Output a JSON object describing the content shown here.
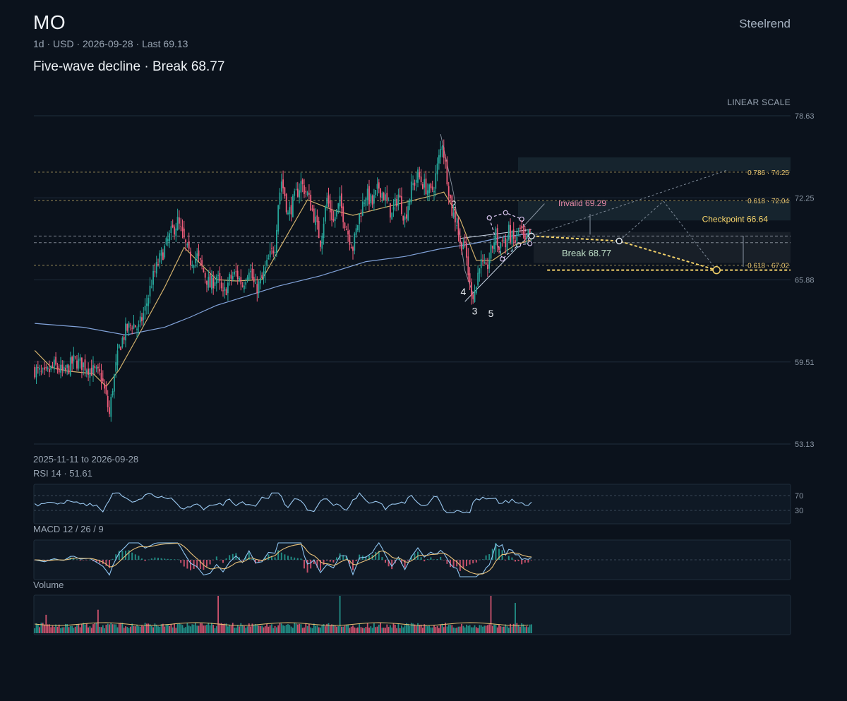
{
  "header": {
    "symbol": "MO",
    "meta": "1d · USD · 2026-09-28 · Last 69.13",
    "headline": "Five-wave decline · Break 68.77",
    "brand": "Steelrend",
    "scale_label": "LINEAR SCALE",
    "date_range": "2025-11-11 to 2026-09-28"
  },
  "colors": {
    "background": "#0b121c",
    "up": "#26a69a",
    "down": "#ef5d7a",
    "ma_fast": "#e8c274",
    "ma_slow": "#8fb4f0",
    "rsi": "#9ac8f0",
    "macd": "#8fc6f2",
    "signal": "#e9c27a",
    "projection": "#f5d36a",
    "invalid": "#e88aa8",
    "break": "#bfe0c8"
  },
  "chart_data": {
    "type": "candlestick",
    "interval": "1d",
    "currency": "USD",
    "start_date": "2025-11-11",
    "end_date": "2026-09-28",
    "last": 69.13,
    "ylim": [
      53.13,
      78.63
    ],
    "y_ticks": [
      "78.63",
      "72.25",
      "65.88",
      "59.51",
      "53.13"
    ],
    "scale": "linear",
    "price_anchors": [
      [
        0,
        58.9
      ],
      [
        6,
        58.4
      ],
      [
        12,
        59.2
      ],
      [
        18,
        58.6
      ],
      [
        24,
        59.6
      ],
      [
        30,
        59.3
      ],
      [
        36,
        58.8
      ],
      [
        41,
        58.4
      ],
      [
        44,
        56.7
      ],
      [
        46,
        55.4
      ],
      [
        48,
        57.6
      ],
      [
        52,
        60.6
      ],
      [
        56,
        61.9
      ],
      [
        60,
        62.5
      ],
      [
        64,
        62.1
      ],
      [
        68,
        63.6
      ],
      [
        72,
        65.7
      ],
      [
        76,
        67.2
      ],
      [
        80,
        68.3
      ],
      [
        84,
        69.5
      ],
      [
        88,
        70.4
      ],
      [
        92,
        68.9
      ],
      [
        96,
        67.4
      ],
      [
        100,
        67.7
      ],
      [
        104,
        66.5
      ],
      [
        108,
        65.4
      ],
      [
        112,
        66.2
      ],
      [
        116,
        64.6
      ],
      [
        120,
        65.9
      ],
      [
        124,
        66.4
      ],
      [
        128,
        65.5
      ],
      [
        132,
        66.9
      ],
      [
        136,
        65.1
      ],
      [
        140,
        65.9
      ],
      [
        144,
        67.4
      ],
      [
        148,
        68.6
      ],
      [
        150,
        71.9
      ],
      [
        152,
        73.6
      ],
      [
        154,
        72.5
      ],
      [
        156,
        70.9
      ],
      [
        160,
        72.2
      ],
      [
        164,
        73.4
      ],
      [
        168,
        72.5
      ],
      [
        172,
        70.9
      ],
      [
        176,
        68.9
      ],
      [
        180,
        72.2
      ],
      [
        184,
        70.4
      ],
      [
        188,
        71.9
      ],
      [
        192,
        69.9
      ],
      [
        196,
        68.4
      ],
      [
        200,
        70.9
      ],
      [
        204,
        72.6
      ],
      [
        208,
        71.8
      ],
      [
        212,
        73.1
      ],
      [
        216,
        72.2
      ],
      [
        220,
        70.9
      ],
      [
        224,
        72.5
      ],
      [
        228,
        70.6
      ],
      [
        232,
        73.0
      ],
      [
        236,
        74.0
      ],
      [
        240,
        73.2
      ],
      [
        244,
        72.6
      ],
      [
        246,
        73.3
      ],
      [
        249,
        75.3
      ],
      [
        251,
        76.6
      ],
      [
        254,
        73.9
      ],
      [
        257,
        71.2
      ],
      [
        260,
        70.4
      ],
      [
        262,
        68.6
      ],
      [
        264,
        68.9
      ],
      [
        266,
        67.5
      ],
      [
        268,
        65.4
      ],
      [
        270,
        64.8
      ],
      [
        272,
        65.4
      ],
      [
        274,
        67.3
      ],
      [
        276,
        66.9
      ],
      [
        278,
        66.5
      ],
      [
        280,
        67.6
      ],
      [
        282,
        68.5
      ],
      [
        284,
        69.4
      ],
      [
        286,
        68.2
      ],
      [
        288,
        69.3
      ],
      [
        290,
        68.5
      ],
      [
        292,
        69.6
      ],
      [
        294,
        69.0
      ],
      [
        296,
        68.9
      ],
      [
        298,
        69.8
      ],
      [
        300,
        69.5
      ],
      [
        302,
        68.5
      ],
      [
        304,
        69.4
      ],
      [
        306,
        69.1
      ]
    ],
    "moving_averages": [
      {
        "name": "fast MA",
        "points": [
          [
            0,
            60.4
          ],
          [
            10,
            59.1
          ],
          [
            20,
            58.8
          ],
          [
            36,
            58.6
          ],
          [
            44,
            57.6
          ],
          [
            52,
            58.9
          ],
          [
            64,
            61.6
          ],
          [
            80,
            65.3
          ],
          [
            92,
            68.4
          ],
          [
            100,
            67.4
          ],
          [
            112,
            65.9
          ],
          [
            124,
            65.8
          ],
          [
            140,
            65.9
          ],
          [
            152,
            68.6
          ],
          [
            168,
            72.1
          ],
          [
            184,
            71.3
          ],
          [
            196,
            70.9
          ],
          [
            212,
            71.4
          ],
          [
            228,
            71.9
          ],
          [
            244,
            72.4
          ],
          [
            252,
            72.7
          ],
          [
            262,
            70.6
          ],
          [
            272,
            67.4
          ],
          [
            282,
            67.4
          ],
          [
            296,
            68.6
          ],
          [
            306,
            69.0
          ]
        ]
      },
      {
        "name": "slow MA",
        "points": [
          [
            0,
            62.5
          ],
          [
            30,
            62.2
          ],
          [
            56,
            61.6
          ],
          [
            80,
            62.2
          ],
          [
            96,
            63.0
          ],
          [
            112,
            63.9
          ],
          [
            130,
            64.6
          ],
          [
            150,
            65.4
          ],
          [
            176,
            66.2
          ],
          [
            204,
            67.3
          ],
          [
            228,
            67.7
          ],
          [
            250,
            68.3
          ],
          [
            270,
            68.7
          ],
          [
            288,
            69.2
          ],
          [
            306,
            69.5
          ]
        ]
      }
    ],
    "levels": [
      {
        "label": "0.786 · 74.25",
        "value": 74.25
      },
      {
        "label": "0.618 · 72.04",
        "value": 72.04
      },
      {
        "label": "0.618 · 67.02",
        "value": 67.02
      }
    ],
    "break_level": {
      "label": "Break 68.77",
      "value": 68.77
    },
    "invalid_level": {
      "label": "Invalid 69.29",
      "value": 69.29
    },
    "checkpoint": {
      "label": "Checkpoint 66.64",
      "value": 66.64
    },
    "wave_labels": [
      {
        "label": "2",
        "bar": 258,
        "price": 71.5
      },
      {
        "label": "3",
        "bar": 271,
        "price": 63.2
      },
      {
        "label": "4",
        "bar": 264,
        "price": 64.7
      },
      {
        "label": "5",
        "bar": 281,
        "price": 63.0
      }
    ],
    "projection": [
      [
        306,
        69.29
      ],
      [
        360,
        68.9
      ],
      [
        420,
        66.64
      ]
    ],
    "projection_target": 66.64,
    "rsi": {
      "label": "RSI 14 · 51.61",
      "period": 14,
      "last": 51.61,
      "ylim": [
        0,
        100
      ],
      "levels": [
        70,
        30
      ],
      "level_labels": [
        "70",
        "30"
      ]
    },
    "macd": {
      "label": "MACD 12 / 26 / 9",
      "fast": 12,
      "slow": 26,
      "signal": 9
    },
    "volume": {
      "label": "Volume"
    }
  }
}
